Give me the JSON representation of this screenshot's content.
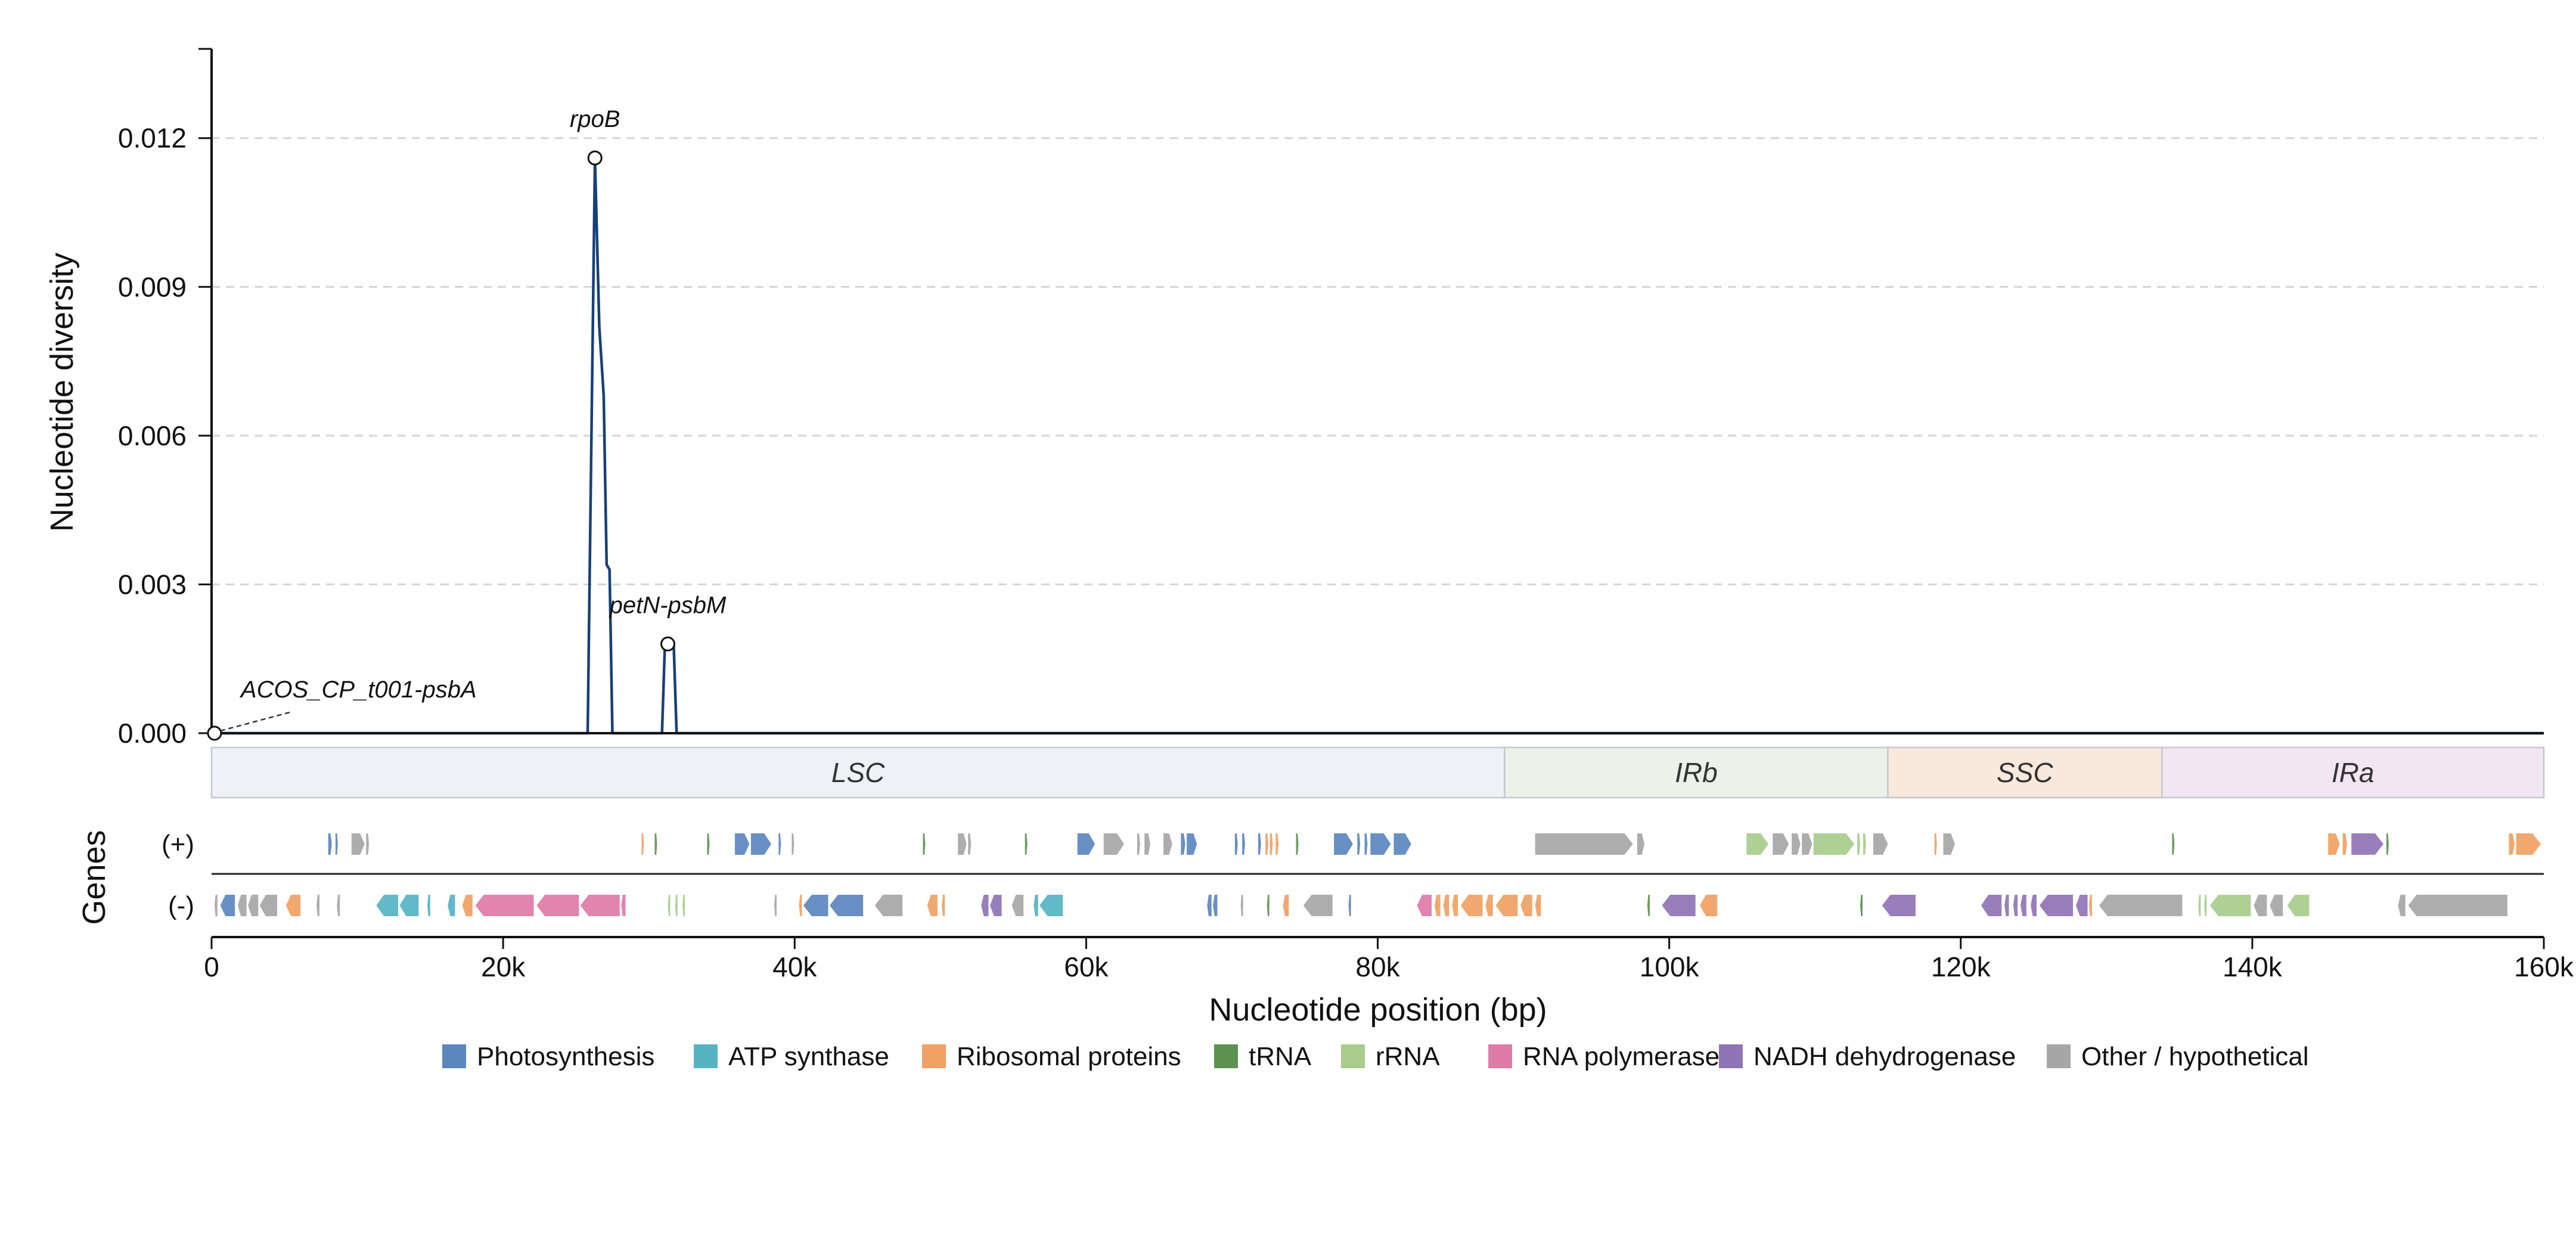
{
  "chart_data": {
    "type": "line",
    "xlabel": "Nucleotide position (bp)",
    "ylabel": "Nucleotide diversity",
    "genes_label": "Genes",
    "xlim": [
      0,
      160000
    ],
    "ylim": [
      0,
      0.0138
    ],
    "x_ticks": [
      {
        "value": 0,
        "label": "0"
      },
      {
        "value": 20000,
        "label": "20k"
      },
      {
        "value": 40000,
        "label": "40k"
      },
      {
        "value": 60000,
        "label": "60k"
      },
      {
        "value": 80000,
        "label": "80k"
      },
      {
        "value": 100000,
        "label": "100k"
      },
      {
        "value": 120000,
        "label": "120k"
      },
      {
        "value": 140000,
        "label": "140k"
      },
      {
        "value": 160000,
        "label": "160k"
      }
    ],
    "y_ticks": [
      {
        "value": 0.0,
        "label": "0.000"
      },
      {
        "value": 0.003,
        "label": "0.003"
      },
      {
        "value": 0.006,
        "label": "0.006"
      },
      {
        "value": 0.009,
        "label": "0.009"
      },
      {
        "value": 0.012,
        "label": "0.012"
      }
    ],
    "grid": "horizontal dashed",
    "series": [
      {
        "color": "#173f7a",
        "points": [
          [
            0,
            0
          ],
          [
            25800,
            0
          ],
          [
            26300,
            0.0116
          ],
          [
            26600,
            0.0082
          ],
          [
            26900,
            0.0068
          ],
          [
            27100,
            0.0034
          ],
          [
            27300,
            0.0033
          ],
          [
            27500,
            0
          ],
          [
            30900,
            0
          ],
          [
            31100,
            0.0018
          ],
          [
            31700,
            0.0018
          ],
          [
            31900,
            0
          ],
          [
            160000,
            0
          ]
        ]
      }
    ],
    "peaks": [
      {
        "label": "rpoB",
        "x": 26300,
        "y": 0.0116
      },
      {
        "label": "petN-psbM",
        "x": 31300,
        "y": 0.0018
      },
      {
        "label": "ACOS_CP_t001-psbA",
        "x": 200,
        "y": 0.0
      }
    ],
    "regions": [
      {
        "label": "LSC",
        "start": 0,
        "end": 88700,
        "color": "#eef2f6"
      },
      {
        "label": "IRb",
        "start": 88700,
        "end": 115000,
        "color": "#ecf2ea"
      },
      {
        "label": "SSC",
        "start": 115000,
        "end": 133800,
        "color": "#f9e8dc"
      },
      {
        "label": "IRa",
        "start": 133800,
        "end": 160000,
        "color": "#f1e6f1"
      }
    ],
    "strands": [
      {
        "key": "plus",
        "label": "(+)"
      },
      {
        "key": "minus",
        "label": "(-)"
      }
    ],
    "categories": [
      {
        "key": "photo",
        "label": "Photosynthesis",
        "color": "#5b87bf"
      },
      {
        "key": "atp",
        "label": "ATP synthase",
        "color": "#55b3c2"
      },
      {
        "key": "ribo",
        "label": "Ribosomal proteins",
        "color": "#f0a163"
      },
      {
        "key": "trna",
        "label": "tRNA",
        "color": "#5d9150"
      },
      {
        "key": "rrna",
        "label": "rRNA",
        "color": "#a7cc8c"
      },
      {
        "key": "rnap",
        "label": "RNA polymerase",
        "color": "#e07aa6"
      },
      {
        "key": "ndh",
        "label": "NADH dehydrogenase",
        "color": "#8f74b6"
      },
      {
        "key": "other",
        "label": "Other / hypothetical",
        "color": "#a6a6a6"
      }
    ],
    "genes_plus": [
      [
        8000,
        8250,
        "photo"
      ],
      [
        8500,
        8650,
        "photo"
      ],
      [
        9600,
        10500,
        "other"
      ],
      [
        10600,
        10800,
        "other"
      ],
      [
        29500,
        29650,
        "ribo"
      ],
      [
        30400,
        30550,
        "trna"
      ],
      [
        34000,
        34150,
        "trna"
      ],
      [
        35900,
        36900,
        "photo"
      ],
      [
        37000,
        38400,
        "photo"
      ],
      [
        38900,
        39050,
        "photo"
      ],
      [
        39800,
        39950,
        "other"
      ],
      [
        48800,
        48950,
        "trna"
      ],
      [
        51200,
        51800,
        "other"
      ],
      [
        51900,
        52100,
        "other"
      ],
      [
        55800,
        55950,
        "trna"
      ],
      [
        59400,
        60600,
        "photo"
      ],
      [
        61200,
        62600,
        "other"
      ],
      [
        63500,
        63700,
        "other"
      ],
      [
        64000,
        64400,
        "other"
      ],
      [
        65300,
        65900,
        "other"
      ],
      [
        66500,
        66800,
        "photo"
      ],
      [
        66900,
        67600,
        "photo"
      ],
      [
        70200,
        70400,
        "photo"
      ],
      [
        70700,
        70900,
        "photo"
      ],
      [
        71800,
        72000,
        "photo"
      ],
      [
        72300,
        72500,
        "ribo"
      ],
      [
        72600,
        72800,
        "ribo"
      ],
      [
        73000,
        73200,
        "ribo"
      ],
      [
        74400,
        74550,
        "trna"
      ],
      [
        77000,
        78300,
        "photo"
      ],
      [
        78600,
        78800,
        "photo"
      ],
      [
        79100,
        79300,
        "photo"
      ],
      [
        79500,
        80900,
        "photo"
      ],
      [
        81100,
        82300,
        "photo"
      ],
      [
        90800,
        97500,
        "other"
      ],
      [
        97800,
        98300,
        "other"
      ],
      [
        105300,
        106800,
        "rrna"
      ],
      [
        107100,
        108200,
        "other"
      ],
      [
        108400,
        109000,
        "other"
      ],
      [
        109100,
        109800,
        "other"
      ],
      [
        109900,
        112700,
        "rrna"
      ],
      [
        112900,
        113100,
        "rrna"
      ],
      [
        113300,
        113500,
        "rrna"
      ],
      [
        114000,
        115000,
        "other"
      ],
      [
        118200,
        118350,
        "ribo"
      ],
      [
        118800,
        119600,
        "other"
      ],
      [
        134500,
        134650,
        "trna"
      ],
      [
        145200,
        146000,
        "ribo"
      ],
      [
        146200,
        146500,
        "ribo"
      ],
      [
        146800,
        149000,
        "ndh"
      ],
      [
        149200,
        149350,
        "trna"
      ],
      [
        157600,
        158000,
        "ribo"
      ],
      [
        158100,
        159800,
        "ribo"
      ]
    ],
    "genes_minus": [
      [
        200,
        400,
        "other"
      ],
      [
        600,
        1600,
        "photo"
      ],
      [
        1800,
        2400,
        "other"
      ],
      [
        2500,
        3200,
        "other"
      ],
      [
        3300,
        4500,
        "other"
      ],
      [
        5100,
        6100,
        "ribo"
      ],
      [
        7200,
        7400,
        "other"
      ],
      [
        8600,
        8800,
        "other"
      ],
      [
        11300,
        12800,
        "atp"
      ],
      [
        12900,
        14200,
        "atp"
      ],
      [
        14800,
        15000,
        "atp"
      ],
      [
        16200,
        16700,
        "atp"
      ],
      [
        17200,
        17900,
        "ribo"
      ],
      [
        18100,
        22100,
        "rnap"
      ],
      [
        22300,
        25200,
        "rnap"
      ],
      [
        25300,
        28000,
        "rnap"
      ],
      [
        28100,
        28400,
        "rnap"
      ],
      [
        31300,
        31450,
        "rrna"
      ],
      [
        31800,
        31950,
        "rrna"
      ],
      [
        32300,
        32450,
        "rrna"
      ],
      [
        38600,
        38750,
        "other"
      ],
      [
        40300,
        40500,
        "ribo"
      ],
      [
        40600,
        42300,
        "photo"
      ],
      [
        42400,
        44700,
        "photo"
      ],
      [
        45500,
        47400,
        "other"
      ],
      [
        49100,
        49800,
        "ribo"
      ],
      [
        50100,
        50300,
        "ribo"
      ],
      [
        52800,
        53300,
        "ndh"
      ],
      [
        53400,
        54200,
        "ndh"
      ],
      [
        54900,
        55700,
        "other"
      ],
      [
        56400,
        56700,
        "atp"
      ],
      [
        56800,
        58400,
        "atp"
      ],
      [
        68300,
        68600,
        "photo"
      ],
      [
        68700,
        69000,
        "photo"
      ],
      [
        70600,
        70750,
        "other"
      ],
      [
        72400,
        72550,
        "trna"
      ],
      [
        73500,
        73900,
        "ribo"
      ],
      [
        74900,
        76900,
        "other"
      ],
      [
        78000,
        78150,
        "photo"
      ],
      [
        82700,
        83700,
        "rnap"
      ],
      [
        83900,
        84300,
        "ribo"
      ],
      [
        84500,
        84900,
        "ribo"
      ],
      [
        85100,
        85500,
        "ribo"
      ],
      [
        85700,
        87200,
        "ribo"
      ],
      [
        87400,
        87900,
        "ribo"
      ],
      [
        88100,
        89600,
        "ribo"
      ],
      [
        89800,
        90600,
        "ribo"
      ],
      [
        90800,
        91200,
        "ribo"
      ],
      [
        98500,
        98650,
        "trna"
      ],
      [
        99500,
        101800,
        "ndh"
      ],
      [
        102100,
        103300,
        "ribo"
      ],
      [
        113100,
        113250,
        "trna"
      ],
      [
        114600,
        116900,
        "ndh"
      ],
      [
        121400,
        122800,
        "ndh"
      ],
      [
        123000,
        123300,
        "ndh"
      ],
      [
        123600,
        123900,
        "ndh"
      ],
      [
        124100,
        124500,
        "ndh"
      ],
      [
        124800,
        125200,
        "ndh"
      ],
      [
        125400,
        127700,
        "ndh"
      ],
      [
        127900,
        128700,
        "ndh"
      ],
      [
        128800,
        129000,
        "ribo"
      ],
      [
        129500,
        135200,
        "other"
      ],
      [
        136300,
        136450,
        "rrna"
      ],
      [
        136700,
        136850,
        "rrna"
      ],
      [
        137100,
        139900,
        "rrna"
      ],
      [
        140100,
        141000,
        "other"
      ],
      [
        141200,
        142100,
        "other"
      ],
      [
        142400,
        143900,
        "rrna"
      ],
      [
        150000,
        150500,
        "other"
      ],
      [
        150700,
        157500,
        "other"
      ]
    ]
  }
}
